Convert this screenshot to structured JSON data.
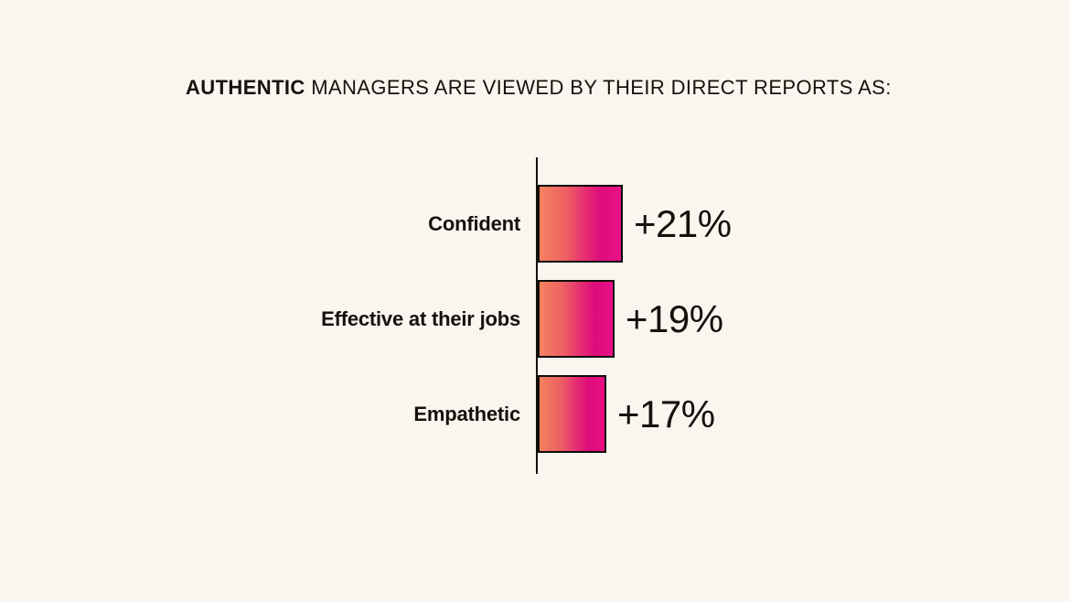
{
  "page": {
    "background": "#F8F6EF"
  },
  "title": {
    "bold": "AUTHENTIC",
    "rest": " MANAGERS ARE VIEWED BY THEIR DIRECT REPORTS AS:"
  },
  "chart_data": {
    "type": "bar",
    "orientation": "horizontal",
    "title": "AUTHENTIC MANAGERS ARE VIEWED BY THEIR DIRECT REPORTS AS:",
    "categories": [
      "Confident",
      "Effective at their jobs",
      "Empathetic"
    ],
    "values": [
      21,
      19,
      17
    ],
    "value_labels": [
      "+21%",
      "+19%",
      "+17%"
    ],
    "xlabel": "",
    "ylabel": "",
    "xlim": [
      0,
      21
    ],
    "grid": false,
    "legend": false,
    "axis_style": "single vertical baseline on left of bars",
    "colors": {
      "background": "#F8F6EF",
      "bar_gradient_start": "#F4835F",
      "bar_gradient_mid": "#DD0C7C",
      "bar_gradient_end": "#EA1086",
      "bar_border": "#0F0D08",
      "axis_line": "#131109",
      "text": "#14120B"
    }
  }
}
